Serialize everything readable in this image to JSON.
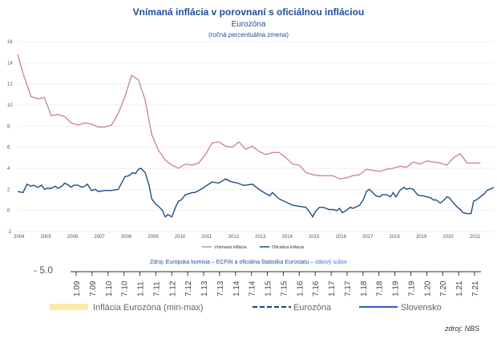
{
  "chart_data": {
    "type": "line",
    "title": "Vnímaná inflácia v porovnaní s oficiálnou infláciou",
    "subtitle": "Eurozóna",
    "unit_label": "(ročná percentuálna zmena)",
    "ylim": [
      -2,
      16
    ],
    "y_ticks": [
      -2,
      0,
      2,
      4,
      6,
      8,
      10,
      12,
      14,
      16
    ],
    "xlim": [
      2004,
      2021.75
    ],
    "x_ticks": [
      "2004",
      "2005",
      "2006",
      "2007",
      "2008",
      "2009",
      "2010",
      "2011",
      "2012",
      "2013",
      "2014",
      "2015",
      "2016",
      "2017",
      "2018",
      "2019",
      "2020",
      "2021"
    ],
    "legend": [
      "Vnímaná inflácia",
      "Oficiálna inflácia"
    ],
    "colors": {
      "perceived": "#c98a98",
      "official": "#1f4e82"
    },
    "series": [
      {
        "name": "Vnímaná inflácia",
        "x": [
          2004.0,
          2004.2,
          2004.5,
          2004.75,
          2005.0,
          2005.25,
          2005.5,
          2005.75,
          2006.0,
          2006.25,
          2006.5,
          2006.75,
          2007.0,
          2007.25,
          2007.5,
          2007.75,
          2008.0,
          2008.25,
          2008.5,
          2008.75,
          2009.0,
          2009.25,
          2009.5,
          2009.75,
          2010.0,
          2010.25,
          2010.5,
          2010.75,
          2011.0,
          2011.25,
          2011.5,
          2011.75,
          2012.0,
          2012.25,
          2012.5,
          2012.75,
          2013.0,
          2013.25,
          2013.5,
          2013.75,
          2014.0,
          2014.25,
          2014.5,
          2014.75,
          2015.0,
          2015.25,
          2015.5,
          2015.75,
          2016.0,
          2016.25,
          2016.5,
          2016.75,
          2017.0,
          2017.25,
          2017.5,
          2017.75,
          2018.0,
          2018.25,
          2018.5,
          2018.75,
          2019.0,
          2019.25,
          2019.5,
          2019.75,
          2020.0,
          2020.25,
          2020.5,
          2020.75,
          2021.0,
          2021.25
        ],
        "values": [
          14.8,
          13.0,
          10.8,
          10.6,
          10.7,
          9.0,
          9.1,
          8.9,
          8.3,
          8.1,
          8.3,
          8.2,
          7.9,
          7.9,
          8.1,
          9.2,
          10.8,
          12.8,
          12.4,
          10.5,
          7.2,
          5.7,
          4.8,
          4.3,
          4.0,
          4.4,
          4.3,
          4.5,
          5.3,
          6.4,
          6.5,
          6.1,
          6.0,
          6.5,
          5.8,
          6.1,
          5.6,
          5.3,
          5.5,
          5.5,
          5.0,
          4.4,
          4.3,
          3.6,
          3.4,
          3.3,
          3.3,
          3.3,
          3.0,
          3.1,
          3.3,
          3.4,
          3.9,
          3.8,
          3.7,
          3.9,
          4.0,
          4.2,
          4.1,
          4.6,
          4.4,
          4.7,
          4.6,
          4.5,
          4.3,
          5.0,
          5.4,
          4.5,
          4.5,
          4.5
        ]
      },
      {
        "name": "Oficiálna inflácia",
        "x": [
          2004.0,
          2004.2,
          2004.35,
          2004.5,
          2004.6,
          2004.75,
          2004.9,
          2005.0,
          2005.1,
          2005.25,
          2005.4,
          2005.5,
          2005.65,
          2005.75,
          2005.9,
          2006.0,
          2006.1,
          2006.25,
          2006.4,
          2006.5,
          2006.6,
          2006.75,
          2006.9,
          2007.0,
          2007.25,
          2007.5,
          2007.75,
          2008.0,
          2008.15,
          2008.3,
          2008.4,
          2008.5,
          2008.6,
          2008.75,
          2008.9,
          2009.0,
          2009.15,
          2009.25,
          2009.4,
          2009.5,
          2009.6,
          2009.75,
          2009.9,
          2010.0,
          2010.1,
          2010.25,
          2010.4,
          2010.5,
          2010.6,
          2010.75,
          2010.9,
          2011.0,
          2011.25,
          2011.5,
          2011.75,
          2011.9,
          2012.0,
          2012.2,
          2012.4,
          2012.5,
          2012.75,
          2012.9,
          2013.0,
          2013.25,
          2013.4,
          2013.5,
          2013.75,
          2014.0,
          2014.25,
          2014.5,
          2014.75,
          2014.9,
          2015.0,
          2015.1,
          2015.25,
          2015.4,
          2015.5,
          2015.6,
          2015.75,
          2015.9,
          2016.0,
          2016.1,
          2016.25,
          2016.4,
          2016.5,
          2016.75,
          2016.9,
          2017.0,
          2017.1,
          2017.2,
          2017.35,
          2017.5,
          2017.6,
          2017.75,
          2017.9,
          2018.0,
          2018.1,
          2018.25,
          2018.4,
          2018.5,
          2018.6,
          2018.75,
          2018.9,
          2019.0,
          2019.1,
          2019.25,
          2019.4,
          2019.5,
          2019.6,
          2019.75,
          2019.9,
          2020.0,
          2020.1,
          2020.25,
          2020.4,
          2020.5,
          2020.6,
          2020.75,
          2020.9,
          2021.0,
          2021.1,
          2021.25,
          2021.4,
          2021.5,
          2021.6,
          2021.75
        ],
        "values": [
          1.8,
          1.7,
          2.5,
          2.3,
          2.4,
          2.2,
          2.4,
          2.0,
          2.1,
          2.1,
          2.3,
          2.1,
          2.3,
          2.6,
          2.4,
          2.2,
          2.4,
          2.4,
          2.2,
          2.3,
          2.5,
          1.9,
          2.0,
          1.8,
          1.9,
          1.9,
          2.0,
          3.2,
          3.3,
          3.6,
          3.5,
          3.9,
          4.0,
          3.6,
          2.4,
          1.1,
          0.6,
          0.4,
          0.0,
          -0.6,
          -0.4,
          -0.6,
          0.4,
          0.9,
          1.0,
          1.5,
          1.6,
          1.7,
          1.7,
          1.9,
          2.1,
          2.3,
          2.7,
          2.6,
          3.0,
          2.8,
          2.7,
          2.6,
          2.4,
          2.4,
          2.5,
          2.2,
          2.0,
          1.6,
          1.4,
          1.7,
          1.1,
          0.8,
          0.5,
          0.4,
          0.3,
          -0.2,
          -0.6,
          -0.1,
          0.3,
          0.3,
          0.2,
          0.1,
          0.1,
          0.0,
          0.2,
          -0.2,
          0.0,
          0.3,
          0.2,
          0.5,
          1.1,
          1.8,
          2.0,
          1.8,
          1.4,
          1.3,
          1.5,
          1.5,
          1.3,
          1.7,
          1.3,
          1.9,
          2.2,
          2.0,
          2.1,
          2.0,
          1.5,
          1.4,
          1.4,
          1.3,
          1.2,
          1.0,
          1.0,
          0.7,
          1.0,
          1.3,
          1.2,
          0.7,
          0.3,
          0.1,
          -0.2,
          -0.3,
          -0.3,
          0.9,
          1.0,
          1.3,
          1.6,
          1.9,
          2.0,
          2.2
        ]
      }
    ]
  },
  "source": {
    "prefix": "Zdroj: Európska komisia – ECFIN a oficiálna štatistika Eurostatu – ",
    "link": "dátový súbor"
  },
  "background_chart": {
    "y_label": "- 5.0",
    "x_ticks": [
      "1.09",
      "7.09",
      "1.10",
      "7.10",
      "1.11",
      "7.11",
      "1.12",
      "7.12",
      "1.13",
      "7.13",
      "1.14",
      "7.14",
      "1.15",
      "7.15",
      "1.16",
      "7.16",
      "1.17",
      "7.17",
      "1.18",
      "7.18",
      "1.19",
      "7.19",
      "1.20",
      "7.20",
      "1.21",
      "7.21"
    ],
    "legend": [
      {
        "label": "Inflácia Eurozóna (min-max)",
        "color": "#fce9a6",
        "style": "band"
      },
      {
        "label": "Eurozóna",
        "color": "#1f3f8a",
        "style": "dashed"
      },
      {
        "label": "Slovensko",
        "color": "#3a63c4",
        "style": "solid"
      }
    ]
  },
  "credit": "zdroj: NBS"
}
